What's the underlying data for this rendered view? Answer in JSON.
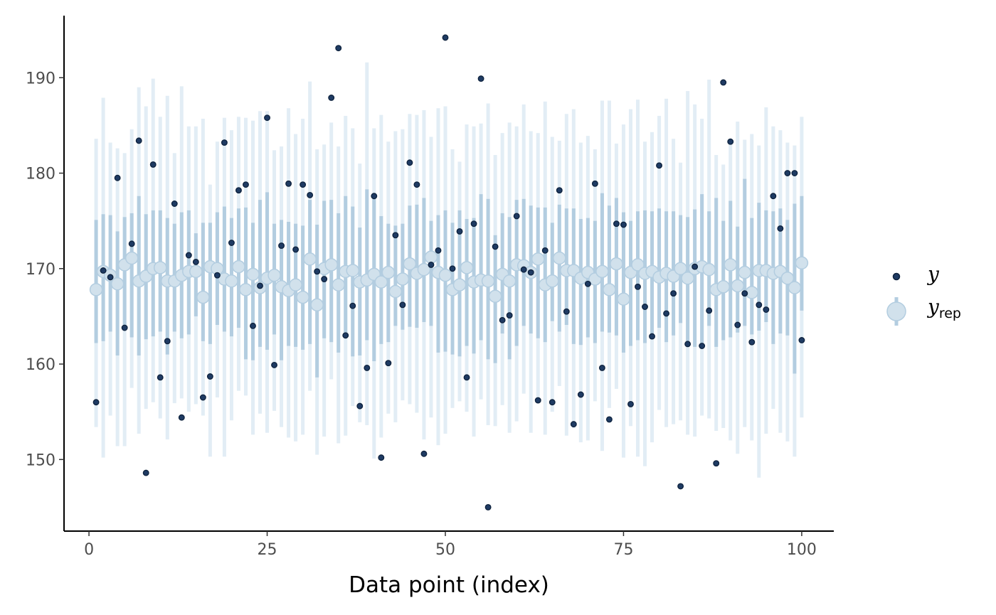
{
  "chart_data": {
    "type": "scatter",
    "title": "",
    "xlabel": "Data point (index)",
    "ylabel": "",
    "xlim": [
      -3.5,
      104.5
    ],
    "ylim": [
      142.5,
      196.5
    ],
    "x_ticks": [
      0,
      25,
      50,
      75,
      100
    ],
    "y_ticks": [
      150,
      160,
      170,
      180,
      190
    ],
    "grid": false,
    "legend_position": "right",
    "colors": {
      "y_point_fill": "#1f3b63",
      "y_point_stroke": "#0e223d",
      "yrep_point_fill": "#d1e1ec",
      "yrep_point_stroke": "#b3cde0",
      "inner_interval": "#b3cde0",
      "outer_interval": "#e2edf5"
    },
    "legend": [
      {
        "key": "y",
        "label": "y",
        "sub": ""
      },
      {
        "key": "yrep",
        "label": "y",
        "sub": "rep"
      }
    ],
    "series": [
      {
        "name": "y",
        "x": [
          1,
          2,
          3,
          4,
          5,
          6,
          7,
          8,
          9,
          10,
          11,
          12,
          13,
          14,
          15,
          16,
          17,
          18,
          19,
          20,
          21,
          22,
          23,
          24,
          25,
          26,
          27,
          28,
          29,
          30,
          31,
          32,
          33,
          34,
          35,
          36,
          37,
          38,
          39,
          40,
          41,
          42,
          43,
          44,
          45,
          46,
          47,
          48,
          49,
          50,
          51,
          52,
          53,
          54,
          55,
          56,
          57,
          58,
          59,
          60,
          61,
          62,
          63,
          64,
          65,
          66,
          67,
          68,
          69,
          70,
          71,
          72,
          73,
          74,
          75,
          76,
          77,
          78,
          79,
          80,
          81,
          82,
          83,
          84,
          85,
          86,
          87,
          88,
          89,
          90,
          91,
          92,
          93,
          94,
          95,
          96,
          97,
          98,
          99,
          100
        ],
        "values": [
          156.0,
          169.8,
          169.1,
          179.5,
          163.8,
          172.6,
          183.4,
          148.6,
          180.9,
          158.6,
          162.4,
          176.8,
          154.4,
          171.4,
          170.7,
          156.5,
          158.7,
          169.3,
          183.2,
          172.7,
          178.2,
          178.8,
          164.0,
          168.2,
          185.8,
          159.9,
          172.4,
          178.9,
          172.0,
          178.8,
          177.7,
          169.7,
          168.9,
          187.9,
          193.1,
          163.0,
          166.1,
          155.6,
          159.6,
          177.6,
          150.2,
          160.1,
          173.5,
          166.2,
          181.1,
          178.8,
          150.6,
          170.4,
          171.9,
          194.2,
          170.0,
          173.9,
          158.6,
          174.7,
          189.9,
          145.0,
          172.3,
          164.6,
          165.1,
          175.5,
          169.9,
          169.6,
          156.2,
          171.9,
          156.0,
          178.2,
          165.5,
          153.7,
          156.8,
          168.4,
          178.9,
          159.6,
          154.2,
          174.7,
          174.6,
          155.8,
          168.1,
          166.0,
          162.9,
          180.8,
          165.3,
          167.4,
          147.2,
          162.1,
          170.2,
          161.9,
          165.6,
          149.6,
          189.5,
          183.3,
          164.1,
          167.4,
          162.3,
          166.2,
          165.7,
          177.6,
          174.2,
          180.0,
          180.0,
          162.5
        ]
      },
      {
        "name": "y_rep",
        "x": [
          1,
          2,
          3,
          4,
          5,
          6,
          7,
          8,
          9,
          10,
          11,
          12,
          13,
          14,
          15,
          16,
          17,
          18,
          19,
          20,
          21,
          22,
          23,
          24,
          25,
          26,
          27,
          28,
          29,
          30,
          31,
          32,
          33,
          34,
          35,
          36,
          37,
          38,
          39,
          40,
          41,
          42,
          43,
          44,
          45,
          46,
          47,
          48,
          49,
          50,
          51,
          52,
          53,
          54,
          55,
          56,
          57,
          58,
          59,
          60,
          61,
          62,
          63,
          64,
          65,
          66,
          67,
          68,
          69,
          70,
          71,
          72,
          73,
          74,
          75,
          76,
          77,
          78,
          79,
          80,
          81,
          82,
          83,
          84,
          85,
          86,
          87,
          88,
          89,
          90,
          91,
          92,
          93,
          94,
          95,
          96,
          97,
          98,
          99,
          100
        ],
        "median": [
          167.8,
          169.7,
          169.3,
          168.4,
          170.4,
          171.1,
          168.7,
          169.2,
          170.0,
          170.1,
          168.7,
          168.7,
          169.3,
          169.7,
          169.7,
          167.0,
          170.2,
          170.0,
          168.9,
          168.7,
          170.2,
          167.8,
          169.4,
          168.0,
          169.0,
          169.3,
          168.1,
          167.7,
          168.3,
          167.0,
          171.0,
          166.2,
          170.0,
          170.4,
          168.3,
          169.7,
          169.8,
          168.6,
          168.8,
          169.4,
          168.6,
          169.6,
          167.6,
          168.9,
          170.5,
          169.5,
          169.9,
          171.2,
          169.6,
          169.3,
          167.8,
          168.3,
          170.1,
          168.6,
          168.8,
          168.7,
          167.1,
          169.4,
          168.7,
          170.4,
          170.3,
          169.6,
          171.0,
          168.3,
          168.7,
          171.1,
          169.8,
          169.8,
          169.0,
          169.6,
          168.9,
          169.7,
          167.8,
          170.5,
          166.8,
          169.6,
          170.4,
          169.5,
          169.7,
          169.1,
          169.5,
          169.2,
          170.0,
          169.0,
          170.0,
          170.2,
          169.9,
          167.8,
          168.1,
          170.4,
          168.2,
          169.6,
          167.5,
          169.8,
          169.8,
          169.5,
          169.7,
          169.0,
          168.0,
          170.6
        ],
        "inner_lower": [
          162.2,
          162.4,
          163.4,
          160.9,
          163.7,
          162.8,
          160.9,
          162.6,
          162.9,
          163.4,
          161.0,
          163.4,
          162.7,
          163.1,
          165.0,
          162.4,
          162.1,
          164.1,
          163.4,
          162.9,
          163.8,
          160.5,
          160.4,
          161.8,
          161.5,
          163.1,
          160.4,
          161.9,
          161.8,
          161.5,
          162.1,
          158.6,
          162.7,
          162.3,
          161.2,
          163.0,
          160.8,
          160.9,
          162.5,
          160.3,
          162.1,
          162.3,
          164.0,
          163.6,
          163.9,
          163.8,
          164.4,
          164.0,
          161.2,
          161.3,
          161.0,
          160.8,
          161.9,
          161.1,
          162.5,
          160.5,
          160.1,
          163.2,
          160.5,
          161.9,
          164.0,
          163.2,
          162.7,
          162.3,
          164.5,
          163.4,
          164.1,
          162.1,
          162.0,
          162.8,
          162.2,
          163.4,
          163.3,
          163.0,
          161.2,
          161.9,
          162.5,
          162.2,
          162.9,
          163.8,
          162.3,
          163.0,
          164.3,
          162.3,
          161.8,
          162.0,
          164.0,
          161.8,
          162.5,
          162.8,
          163.3,
          164.0,
          163.1,
          163.5,
          164.4,
          162.1,
          163.2,
          163.0,
          159.0,
          165.6
        ],
        "inner_upper": [
          175.1,
          175.7,
          175.6,
          173.9,
          175.4,
          175.8,
          177.6,
          175.7,
          176.1,
          176.1,
          175.3,
          174.7,
          175.9,
          176.1,
          173.7,
          174.8,
          174.8,
          175.9,
          176.5,
          175.3,
          176.3,
          176.4,
          174.8,
          177.2,
          178.0,
          174.7,
          175.1,
          174.9,
          174.7,
          174.5,
          177.2,
          174.6,
          177.1,
          177.2,
          175.8,
          177.6,
          176.5,
          174.3,
          178.3,
          177.9,
          175.5,
          174.7,
          174.5,
          174.7,
          176.6,
          176.7,
          177.4,
          175.0,
          175.6,
          176.1,
          174.8,
          176.1,
          175.2,
          175.3,
          177.8,
          177.3,
          173.5,
          175.8,
          175.4,
          177.2,
          177.3,
          176.6,
          176.4,
          176.4,
          174.8,
          176.7,
          176.3,
          176.3,
          175.2,
          175.3,
          175.0,
          177.9,
          176.6,
          177.4,
          175.9,
          175.0,
          176.0,
          176.1,
          176.0,
          176.3,
          176.0,
          176.0,
          175.6,
          175.4,
          176.2,
          177.8,
          176.0,
          177.4,
          175.0,
          177.1,
          174.4,
          179.4,
          175.3,
          176.9,
          176.1,
          176.0,
          176.3,
          175.1,
          176.8,
          177.6
        ],
        "outer_lower": [
          153.4,
          150.2,
          154.6,
          151.4,
          151.4,
          157.5,
          152.7,
          155.3,
          156.0,
          154.3,
          152.1,
          155.9,
          156.4,
          155.0,
          155.8,
          154.6,
          150.3,
          156.5,
          150.3,
          154.1,
          157.2,
          156.7,
          152.6,
          154.8,
          152.8,
          155.1,
          153.4,
          152.3,
          151.9,
          152.6,
          157.2,
          150.5,
          152.4,
          158.4,
          151.7,
          152.5,
          155.6,
          153.9,
          153.6,
          150.1,
          152.3,
          154.8,
          153.9,
          156.2,
          155.8,
          154.9,
          152.1,
          154.4,
          151.5,
          152.7,
          155.4,
          156.1,
          155.0,
          152.4,
          156.3,
          153.6,
          153.5,
          155.7,
          152.8,
          154.0,
          156.9,
          152.8,
          156.4,
          152.6,
          155.0,
          157.7,
          152.5,
          153.3,
          151.8,
          152.0,
          156.1,
          150.9,
          155.4,
          157.4,
          150.2,
          153.5,
          150.3,
          149.3,
          151.8,
          155.2,
          153.4,
          153.7,
          154.1,
          152.6,
          152.4,
          154.6,
          154.3,
          153.0,
          153.3,
          152.0,
          150.6,
          153.4,
          152.0,
          148.1,
          152.7,
          155.3,
          152.8,
          151.9,
          150.3,
          154.4
        ],
        "outer_upper": [
          183.6,
          187.9,
          183.2,
          182.6,
          182.1,
          184.6,
          189.0,
          187.0,
          189.9,
          185.9,
          188.1,
          182.1,
          189.1,
          184.9,
          184.9,
          185.7,
          178.8,
          183.3,
          185.8,
          184.5,
          185.9,
          185.8,
          185.5,
          186.5,
          186.5,
          182.4,
          182.8,
          186.8,
          184.1,
          185.7,
          189.6,
          182.5,
          183.0,
          185.3,
          182.8,
          186.0,
          184.7,
          181.0,
          191.6,
          184.7,
          186.1,
          183.3,
          184.4,
          184.6,
          186.2,
          186.1,
          186.6,
          183.8,
          186.8,
          187.0,
          182.5,
          181.2,
          185.1,
          184.9,
          185.2,
          187.3,
          181.9,
          184.2,
          185.3,
          184.9,
          187.2,
          184.4,
          184.2,
          187.5,
          183.8,
          183.4,
          186.2,
          186.7,
          183.2,
          183.9,
          182.5,
          187.6,
          187.6,
          183.1,
          185.1,
          186.7,
          187.7,
          183.3,
          184.3,
          186.0,
          187.8,
          183.6,
          181.1,
          188.6,
          187.2,
          185.7,
          189.8,
          181.9,
          180.9,
          183.2,
          185.4,
          183.5,
          184.1,
          182.9,
          186.9,
          184.9,
          184.5,
          183.2,
          182.9,
          185.9
        ]
      }
    ]
  }
}
